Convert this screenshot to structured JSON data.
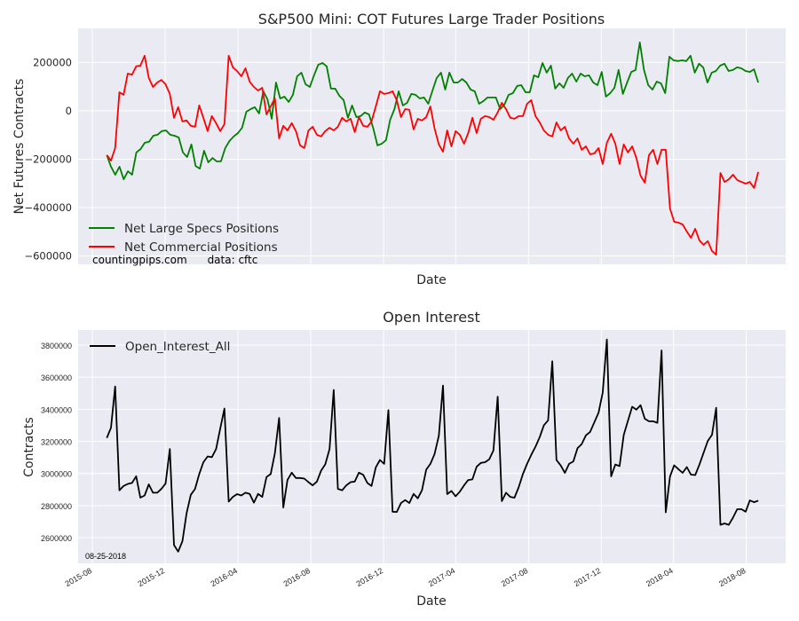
{
  "chart_data": [
    {
      "type": "line",
      "title": "S&P500 Mini: COT Futures Large Trader Positions",
      "xlabel": "Date",
      "ylabel": "Net Futures Contracts",
      "ylim": [
        -635000,
        341000
      ],
      "xlim": [
        "2015-07-08",
        "2018-10-06"
      ],
      "grid": true,
      "legend_position": "lower-left",
      "annotation": "countingpips.com      data: cftc",
      "yticks": [
        200000,
        0,
        -200000,
        -400000,
        -600000
      ],
      "ytick_labels": [
        "200000",
        "0",
        "−200000",
        "−400000",
        "−600000"
      ],
      "frequency": "weekly",
      "series": [
        {
          "name": "Net Large Specs Positions",
          "color": "#008000",
          "x_start": "2015-08-25",
          "x_end": "2018-08-21",
          "values": [
            -183000,
            -231000,
            -264000,
            -231000,
            -283000,
            -250000,
            -264000,
            -172000,
            -158000,
            -132000,
            -128000,
            -103000,
            -99000,
            -84000,
            -81000,
            -99000,
            -103000,
            -110000,
            -172000,
            -191000,
            -139000,
            -228000,
            -239000,
            -165000,
            -213000,
            -195000,
            -209000,
            -209000,
            -154000,
            -125000,
            -106000,
            -92000,
            -70000,
            -4000,
            7000,
            15000,
            -11000,
            81000,
            48000,
            -33000,
            117000,
            51000,
            59000,
            37000,
            66000,
            143000,
            158000,
            110000,
            99000,
            147000,
            191000,
            198000,
            184000,
            92000,
            92000,
            62000,
            44000,
            -29000,
            22000,
            -26000,
            -22000,
            -7000,
            -15000,
            -73000,
            -143000,
            -136000,
            -121000,
            -37000,
            7000,
            81000,
            22000,
            33000,
            70000,
            66000,
            51000,
            55000,
            29000,
            84000,
            136000,
            158000,
            88000,
            158000,
            117000,
            117000,
            132000,
            117000,
            88000,
            81000,
            29000,
            40000,
            55000,
            55000,
            55000,
            7000,
            26000,
            66000,
            73000,
            103000,
            106000,
            77000,
            77000,
            147000,
            139000,
            198000,
            158000,
            187000,
            92000,
            114000,
            95000,
            136000,
            154000,
            121000,
            154000,
            143000,
            147000,
            117000,
            106000,
            161000,
            59000,
            73000,
            95000,
            169000,
            70000,
            117000,
            161000,
            169000,
            283000,
            169000,
            106000,
            88000,
            121000,
            114000,
            73000,
            224000,
            209000,
            206000,
            209000,
            206000,
            228000,
            158000,
            195000,
            180000,
            117000,
            158000,
            165000,
            187000,
            195000,
            165000,
            169000,
            180000,
            176000,
            165000,
            161000,
            172000,
            117000
          ]
        },
        {
          "name": "Net Commercial Positions",
          "color": "#ff0000",
          "x_start": "2015-08-25",
          "x_end": "2018-08-21",
          "values": [
            -183000,
            -206000,
            -154000,
            77000,
            66000,
            154000,
            150000,
            184000,
            187000,
            228000,
            136000,
            99000,
            117000,
            128000,
            110000,
            70000,
            -29000,
            15000,
            -44000,
            -40000,
            -62000,
            -66000,
            22000,
            -29000,
            -84000,
            -22000,
            -51000,
            -84000,
            -55000,
            228000,
            180000,
            165000,
            143000,
            176000,
            121000,
            99000,
            84000,
            95000,
            -15000,
            18000,
            51000,
            -114000,
            -62000,
            -81000,
            -51000,
            -84000,
            -143000,
            -154000,
            -81000,
            -66000,
            -99000,
            -106000,
            -84000,
            -70000,
            -81000,
            -66000,
            -29000,
            -44000,
            -33000,
            -88000,
            -26000,
            -62000,
            -66000,
            -44000,
            18000,
            81000,
            70000,
            73000,
            81000,
            44000,
            -26000,
            7000,
            4000,
            -77000,
            -33000,
            -40000,
            -26000,
            18000,
            -73000,
            -139000,
            -169000,
            -81000,
            -147000,
            -84000,
            -99000,
            -136000,
            -92000,
            -29000,
            -92000,
            -33000,
            -22000,
            -26000,
            -37000,
            -7000,
            33000,
            7000,
            -29000,
            -33000,
            -22000,
            -22000,
            29000,
            44000,
            -22000,
            -48000,
            -81000,
            -99000,
            -106000,
            -48000,
            -81000,
            -66000,
            -114000,
            -136000,
            -114000,
            -161000,
            -147000,
            -180000,
            -176000,
            -154000,
            -220000,
            -132000,
            -95000,
            -136000,
            -220000,
            -139000,
            -172000,
            -147000,
            -195000,
            -268000,
            -297000,
            -183000,
            -161000,
            -220000,
            -161000,
            -161000,
            -404000,
            -459000,
            -462000,
            -470000,
            -499000,
            -525000,
            -488000,
            -536000,
            -554000,
            -539000,
            -580000,
            -595000,
            -257000,
            -294000,
            -283000,
            -264000,
            -286000,
            -294000,
            -301000,
            -294000,
            -319000,
            -253000
          ]
        }
      ]
    },
    {
      "type": "line",
      "title": "Open Interest",
      "xlabel": "Date",
      "ylabel": "Contracts",
      "ylim": [
        2440000,
        3894000
      ],
      "xlim": [
        "2015-07-08",
        "2018-10-06"
      ],
      "grid": true,
      "legend_position": "top-left",
      "annotation": "08-25-2018",
      "yticks": [
        2600000,
        2800000,
        3000000,
        3200000,
        3400000,
        3600000,
        3800000
      ],
      "ytick_labels": [
        "2600000",
        "2800000",
        "3000000",
        "3200000",
        "3400000",
        "3600000",
        "3800000"
      ],
      "xticks": [
        "2015-08-01",
        "2015-12-01",
        "2016-04-01",
        "2016-08-01",
        "2016-12-01",
        "2017-04-01",
        "2017-08-01",
        "2017-12-01",
        "2018-04-01",
        "2018-08-01"
      ],
      "xtick_labels": [
        "2015-08",
        "2015-12",
        "2016-04",
        "2016-08",
        "2016-12",
        "2017-04",
        "2017-08",
        "2017-12",
        "2018-04",
        "2018-08"
      ],
      "frequency": "weekly",
      "series": [
        {
          "name": "Open_Interest_All",
          "color": "#000000",
          "x_start": "2015-08-25",
          "x_end": "2018-08-21",
          "values": [
            3222000,
            3285000,
            3542000,
            2895000,
            2922000,
            2935000,
            2941000,
            2983000,
            2849000,
            2863000,
            2932000,
            2880000,
            2880000,
            2904000,
            2937000,
            3152000,
            2554000,
            2513000,
            2578000,
            2753000,
            2867000,
            2904000,
            2996000,
            3070000,
            3106000,
            3101000,
            3152000,
            3281000,
            3404000,
            2825000,
            2854000,
            2871000,
            2863000,
            2880000,
            2873000,
            2818000,
            2873000,
            2854000,
            2978000,
            2996000,
            3125000,
            3346000,
            2788000,
            2959000,
            3005000,
            2972000,
            2972000,
            2968000,
            2946000,
            2926000,
            2950000,
            3018000,
            3057000,
            3152000,
            3520000,
            2904000,
            2895000,
            2926000,
            2946000,
            2950000,
            3005000,
            2992000,
            2941000,
            2922000,
            3038000,
            3084000,
            3060000,
            3395000,
            2762000,
            2760000,
            2816000,
            2834000,
            2816000,
            2873000,
            2845000,
            2895000,
            3024000,
            3060000,
            3121000,
            3235000,
            3548000,
            2871000,
            2891000,
            2858000,
            2886000,
            2926000,
            2959000,
            2963000,
            3042000,
            3066000,
            3070000,
            3088000,
            3143000,
            3478000,
            2828000,
            2880000,
            2854000,
            2849000,
            2913000,
            2996000,
            3060000,
            3116000,
            3167000,
            3226000,
            3300000,
            3331000,
            3699000,
            3084000,
            3050000,
            3004000,
            3060000,
            3075000,
            3157000,
            3183000,
            3238000,
            3259000,
            3318000,
            3378000,
            3505000,
            3835000,
            2982000,
            3056000,
            3046000,
            3240000,
            3328000,
            3416000,
            3398000,
            3426000,
            3341000,
            3325000,
            3325000,
            3315000,
            3767000,
            2758000,
            2981000,
            3051000,
            3027000,
            3004000,
            3040000,
            2993000,
            2990000,
            3055000,
            3129000,
            3203000,
            3241000,
            3409000,
            2680000,
            2689000,
            2680000,
            2725000,
            2777000,
            2777000,
            2762000,
            2832000,
            2821000,
            2831000
          ]
        }
      ]
    }
  ]
}
